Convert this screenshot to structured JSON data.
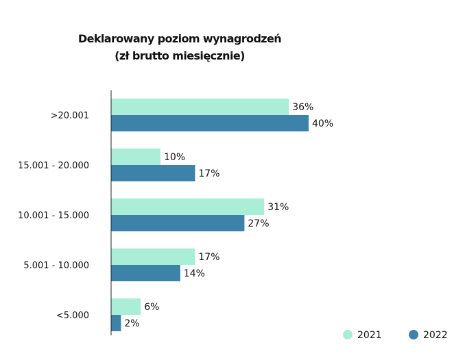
{
  "chart_data": {
    "type": "bar",
    "orientation": "horizontal",
    "title": "Deklarowany poziom wynagrodzeń",
    "subtitle": "(zł brutto miesięcznie)",
    "categories": [
      ">20.001",
      "15.001 - 20.000",
      "10.001 - 15.000",
      "5.001 - 10.000",
      "<5.000"
    ],
    "series": [
      {
        "name": "2021",
        "color": "#abeed8",
        "values": [
          36,
          10,
          31,
          17,
          6
        ],
        "labels": [
          "36%",
          "10%",
          "31%",
          "17%",
          "6%"
        ]
      },
      {
        "name": "2022",
        "color": "#3d82a8",
        "values": [
          40,
          17,
          27,
          14,
          2
        ],
        "labels": [
          "40%",
          "17%",
          "27%",
          "14%",
          "2%"
        ]
      }
    ],
    "unit": "%",
    "xlim": [
      0,
      40
    ],
    "grid": false,
    "legend_position": "bottom-right"
  }
}
